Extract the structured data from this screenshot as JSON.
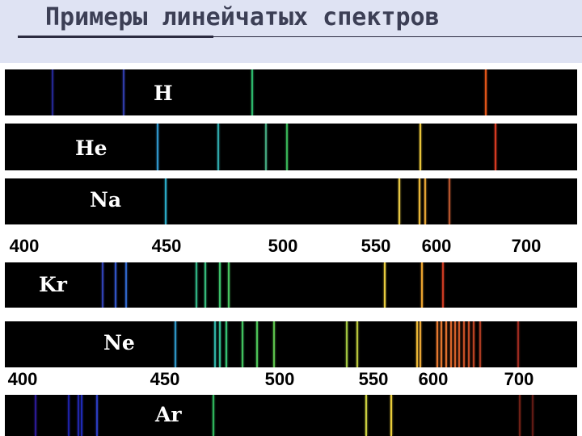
{
  "title": "Примеры линейчатых спектров",
  "spectra": [
    {
      "element": "H",
      "lines": [
        [
          59,
          "#23268f"
        ],
        [
          147,
          "#2f3ba6"
        ],
        [
          306,
          "#2db76b"
        ],
        [
          595,
          "#e05418"
        ]
      ]
    },
    {
      "element": "He",
      "lines": [
        [
          189,
          "#2f93c8"
        ],
        [
          264,
          "#2fa6a9"
        ],
        [
          323,
          "#43a57d"
        ],
        [
          349,
          "#39b357"
        ],
        [
          514,
          "#e7c43b"
        ],
        [
          607,
          "#d53a22"
        ]
      ]
    },
    {
      "element": "Na",
      "lines": [
        [
          199,
          "#2aa9c4"
        ],
        [
          488,
          "#e7c744"
        ],
        [
          513,
          "#e8b638"
        ],
        [
          520,
          "#e2a234"
        ],
        [
          550,
          "#b5542d"
        ]
      ]
    },
    {
      "element": "Kr",
      "lines": [
        [
          121,
          "#3041b2"
        ],
        [
          137,
          "#3053c4"
        ],
        [
          150,
          "#2f64c6"
        ],
        [
          237,
          "#2fb081"
        ],
        [
          248,
          "#35b97a"
        ],
        [
          266,
          "#3cc16a"
        ],
        [
          277,
          "#47c15e"
        ],
        [
          470,
          "#e7cb3e"
        ],
        [
          516,
          "#eaa22f"
        ],
        [
          542,
          "#cc3a22"
        ],
        [
          713,
          "#7d1518"
        ]
      ]
    },
    {
      "element": "Ne",
      "lines": [
        [
          211,
          "#2d93c3"
        ],
        [
          260,
          "#2fb2a6"
        ],
        [
          266,
          "#2fb98e"
        ],
        [
          274,
          "#34bf71"
        ],
        [
          294,
          "#41c15e"
        ],
        [
          312,
          "#4dc257"
        ],
        [
          333,
          "#5bc04c"
        ],
        [
          423,
          "#9fc43f"
        ],
        [
          436,
          "#b7c43b"
        ],
        [
          510,
          "#e8b535"
        ],
        [
          514,
          "#e9a635"
        ],
        [
          535,
          "#e6782f"
        ],
        [
          540,
          "#e1762f"
        ],
        [
          546,
          "#e0702d"
        ],
        [
          552,
          "#d8652a"
        ],
        [
          557,
          "#d35f29"
        ],
        [
          562,
          "#cc5727"
        ],
        [
          568,
          "#c74f25"
        ],
        [
          574,
          "#c04a24"
        ],
        [
          580,
          "#b84222"
        ],
        [
          588,
          "#aa3a21"
        ],
        [
          635,
          "#9b2a1f"
        ]
      ]
    },
    {
      "element": "Ar",
      "lines": [
        [
          38,
          "#2b1a93"
        ],
        [
          79,
          "#1d21a3"
        ],
        [
          91,
          "#2126aa"
        ],
        [
          95,
          "#1f2bb5"
        ],
        [
          114,
          "#2b3cbe"
        ],
        [
          258,
          "#2fb35a"
        ],
        [
          447,
          "#c9cf3f"
        ],
        [
          478,
          "#e9cc3b"
        ],
        [
          637,
          "#6f2016"
        ],
        [
          653,
          "#5f1a14"
        ]
      ]
    }
  ],
  "scales": [
    {
      "ticks": [
        {
          "label": "400",
          "pos": 30
        },
        {
          "label": "450",
          "pos": 206
        },
        {
          "label": "500",
          "pos": 350
        },
        {
          "label": "550",
          "pos": 465
        },
        {
          "label": "600",
          "pos": 540
        },
        {
          "label": "700",
          "pos": 651
        }
      ]
    },
    {
      "ticks": [
        {
          "label": "400",
          "pos": 28
        },
        {
          "label": "450",
          "pos": 204
        },
        {
          "label": "500",
          "pos": 346
        },
        {
          "label": "550",
          "pos": 462
        },
        {
          "label": "600",
          "pos": 536
        },
        {
          "label": "700",
          "pos": 642
        }
      ]
    }
  ]
}
